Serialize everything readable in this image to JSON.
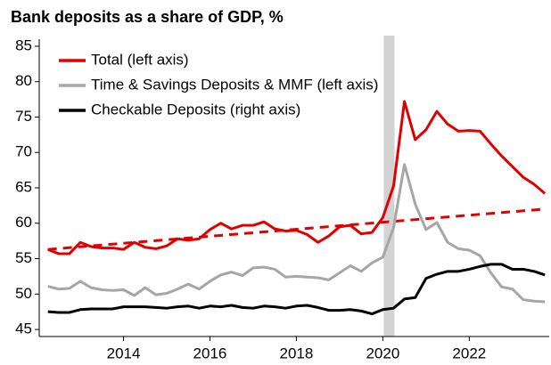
{
  "chart_data": {
    "type": "line",
    "title": "Bank deposits as a share of GDP, %",
    "x": [
      2012.25,
      2012.5,
      2012.75,
      2013,
      2013.25,
      2013.5,
      2013.75,
      2014,
      2014.25,
      2014.5,
      2014.75,
      2015,
      2015.25,
      2015.5,
      2015.75,
      2016,
      2016.25,
      2016.5,
      2016.75,
      2017,
      2017.25,
      2017.5,
      2017.75,
      2018,
      2018.25,
      2018.5,
      2018.75,
      2019,
      2019.25,
      2019.5,
      2019.75,
      2020,
      2020.25,
      2020.5,
      2020.75,
      2021,
      2021.25,
      2021.5,
      2021.75,
      2022,
      2022.25,
      2022.5,
      2022.75,
      2023,
      2023.25,
      2023.5,
      2023.75
    ],
    "series": [
      {
        "name": "Total (left axis)",
        "color": "#e00000",
        "values": [
          56.3,
          55.7,
          55.7,
          57.3,
          56.7,
          56.5,
          56.5,
          56.3,
          57.3,
          56.6,
          56.4,
          56.8,
          57.8,
          57.6,
          57.8,
          59.1,
          60,
          59.2,
          59.7,
          59.7,
          60.2,
          59.2,
          58.9,
          59,
          58.4,
          57.3,
          58.2,
          59.5,
          59.7,
          58.5,
          58.7,
          60.8,
          65.3,
          77.2,
          71.8,
          73.2,
          75.8,
          74,
          73,
          73.1,
          73,
          71.2,
          69.5,
          68,
          66.5,
          65.5,
          64.2
        ]
      },
      {
        "name": "Time & Savings Deposits & MMF (left axis)",
        "color": "#a6a6a6",
        "values": [
          51.1,
          50.7,
          50.8,
          51.8,
          50.9,
          50.6,
          50.5,
          50.6,
          49.8,
          50.9,
          49.9,
          50.1,
          50.7,
          51.4,
          50.7,
          51.8,
          52.7,
          53.1,
          52.6,
          53.7,
          53.8,
          53.5,
          52.4,
          52.5,
          52.4,
          52.3,
          52,
          53,
          54,
          53.2,
          54.4,
          55.2,
          59.4,
          68.3,
          62.7,
          59.1,
          60.1,
          57.3,
          56.4,
          56.2,
          55.4,
          53,
          51,
          50.7,
          49.2,
          49,
          48.9
        ]
      },
      {
        "name": "Checkable Deposits (right axis)",
        "color": "#000000",
        "values": [
          47.5,
          47.4,
          47.4,
          47.8,
          47.9,
          47.9,
          47.9,
          48.2,
          48.2,
          48.2,
          48.1,
          48,
          48.2,
          48.3,
          48,
          48.3,
          48.2,
          48.4,
          48.1,
          48,
          48.3,
          48.2,
          48,
          48.3,
          48.4,
          48.1,
          47.7,
          47.7,
          47.8,
          47.6,
          47.2,
          47.8,
          48,
          49.3,
          49.5,
          52.2,
          52.8,
          53.2,
          53.2,
          53.5,
          53.9,
          54.2,
          54.2,
          53.5,
          53.5,
          53.2,
          52.7
        ]
      }
    ],
    "trend": {
      "x": [
        2012.25,
        2023.75
      ],
      "values": [
        56.3,
        62
      ],
      "color": "#e00000",
      "dash": true
    },
    "shaded_region": {
      "x": [
        2020.02,
        2020.27
      ],
      "color": "#d3d3d3"
    },
    "xlim": [
      2012.05,
      2023.85
    ],
    "xticks": [
      2014,
      2016,
      2018,
      2020,
      2022
    ],
    "ylim": [
      44,
      86
    ],
    "yticks": [
      45,
      50,
      55,
      60,
      65,
      70,
      75,
      80,
      85
    ],
    "legend": "top-left"
  }
}
